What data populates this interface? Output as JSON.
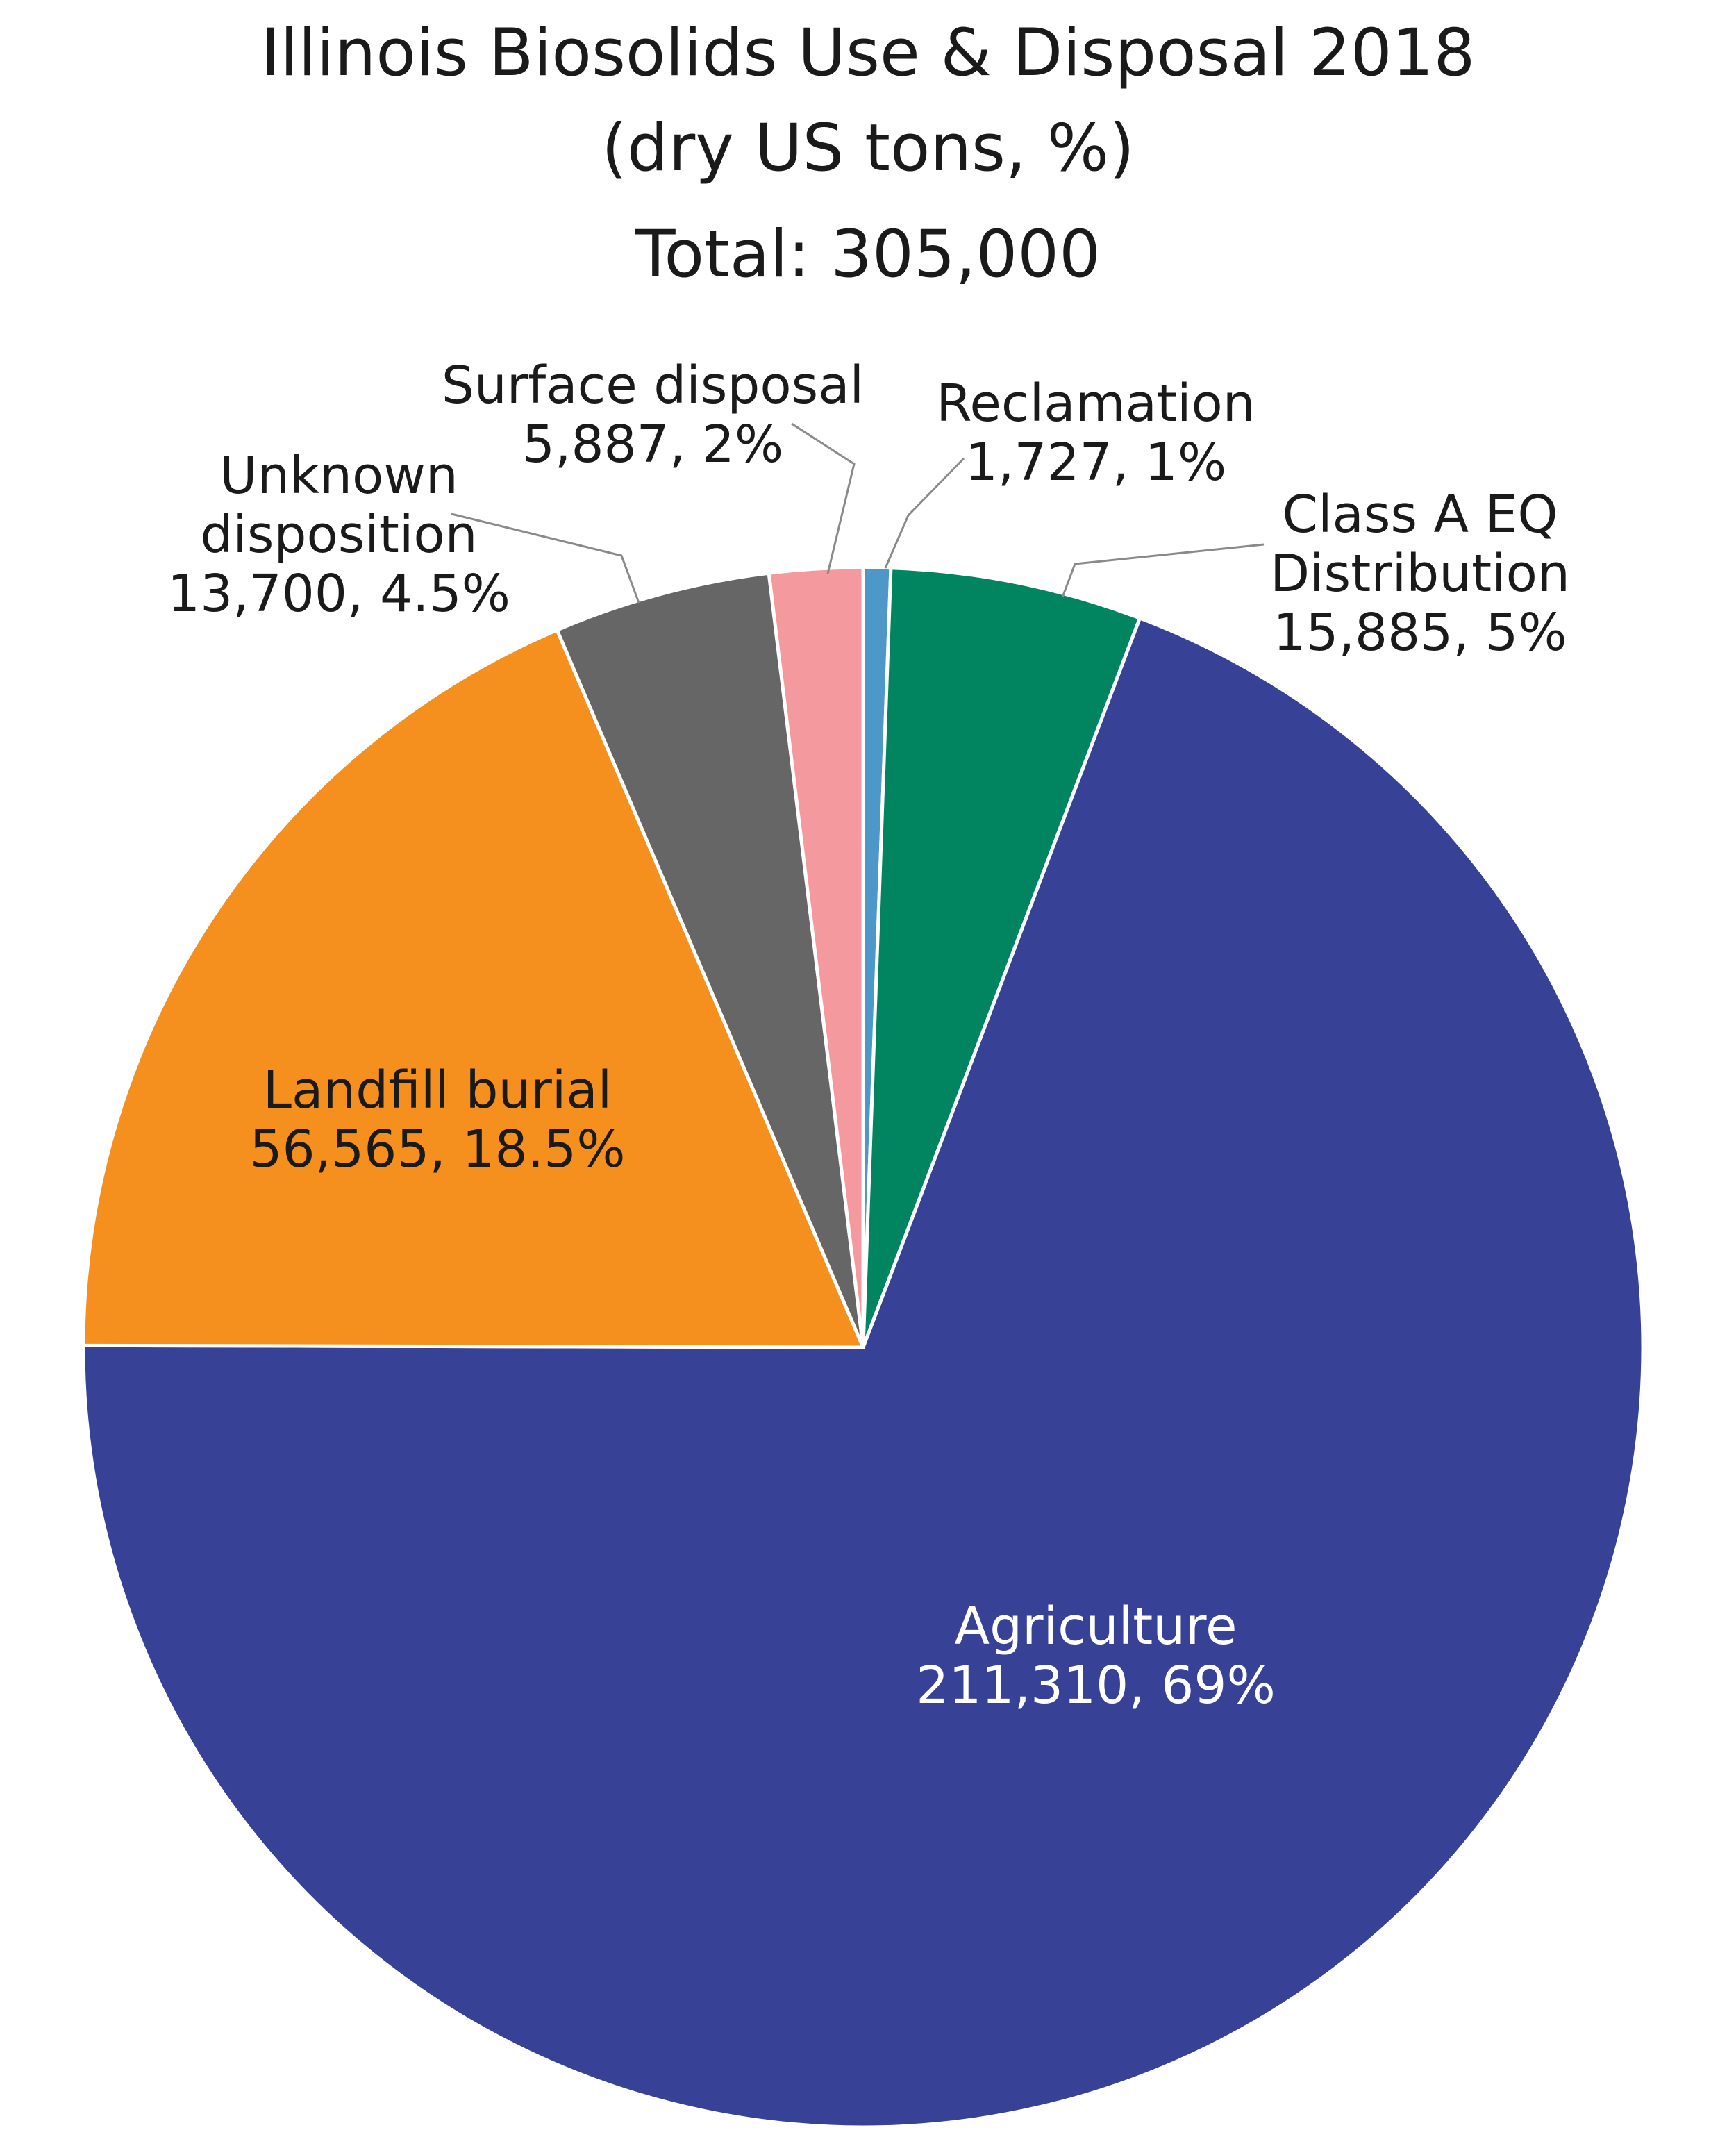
{
  "chart_data": {
    "type": "pie",
    "title": "Illinois Biosolids Use & Disposal 2018",
    "subtitle": "(dry US tons, %)",
    "total_label": "Total: 305,000",
    "total": 305000,
    "start": "12 o'clock",
    "direction": "clockwise",
    "slices": [
      {
        "name": "Reclamation",
        "value": 1727,
        "percent": 1,
        "label_lines": [
          "Reclamation",
          "1,727, 1%"
        ],
        "color": "#4d97c9",
        "label_color": "#1a1a1a"
      },
      {
        "name": "Class A EQ Distribution",
        "value": 15885,
        "percent": 5,
        "label_lines": [
          "Class A EQ",
          "Distribution",
          "15,885, 5%"
        ],
        "color": "#008560",
        "label_color": "#1a1a1a"
      },
      {
        "name": "Agriculture",
        "value": 211310,
        "percent": 69,
        "label_lines": [
          "Agriculture",
          "211,310, 69%"
        ],
        "color": "#374196",
        "label_color": "#ffffff"
      },
      {
        "name": "Landfill burial",
        "value": 56565,
        "percent": 18.5,
        "label_lines": [
          "Landfill burial",
          "56,565, 18.5%"
        ],
        "color": "#f5901e",
        "label_color": "#1a1a1a"
      },
      {
        "name": "Unknown disposition",
        "value": 13700,
        "percent": 4.5,
        "label_lines": [
          "Unknown",
          "disposition",
          "13,700, 4.5%"
        ],
        "color": "#666666",
        "label_color": "#1a1a1a"
      },
      {
        "name": "Surface disposal",
        "value": 5887,
        "percent": 2,
        "label_lines": [
          "Surface disposal",
          "5,887, 2%"
        ],
        "color": "#f49a9e",
        "label_color": "#1a1a1a"
      }
    ]
  }
}
